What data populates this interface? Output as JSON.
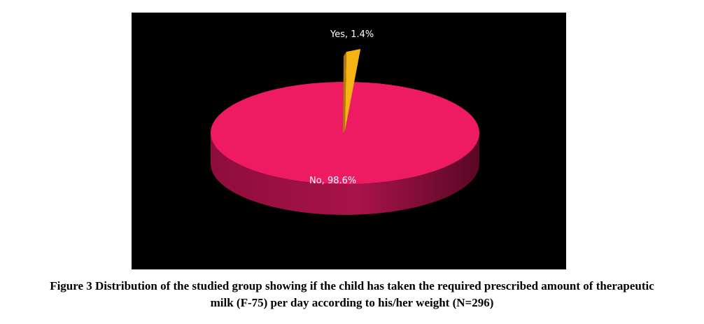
{
  "chart_data": {
    "type": "pie",
    "style": "3d",
    "categories": [
      "Yes",
      "No"
    ],
    "values": [
      1.4,
      98.6
    ],
    "unit": "%",
    "colors": {
      "Yes": "#f5b414",
      "No": "#ee1b63",
      "No_side": "#7d0b33",
      "background": "#000000"
    },
    "labels": {
      "Yes": "Yes, 1.4%",
      "No": "No, 98.6%"
    },
    "legend": "none"
  },
  "caption": {
    "line1": "Figure 3 Distribution of the studied group showing if the child has taken the required prescribed amount of therapeutic",
    "line2": "milk (F-75) per day according to his/her weight (N=296)"
  }
}
